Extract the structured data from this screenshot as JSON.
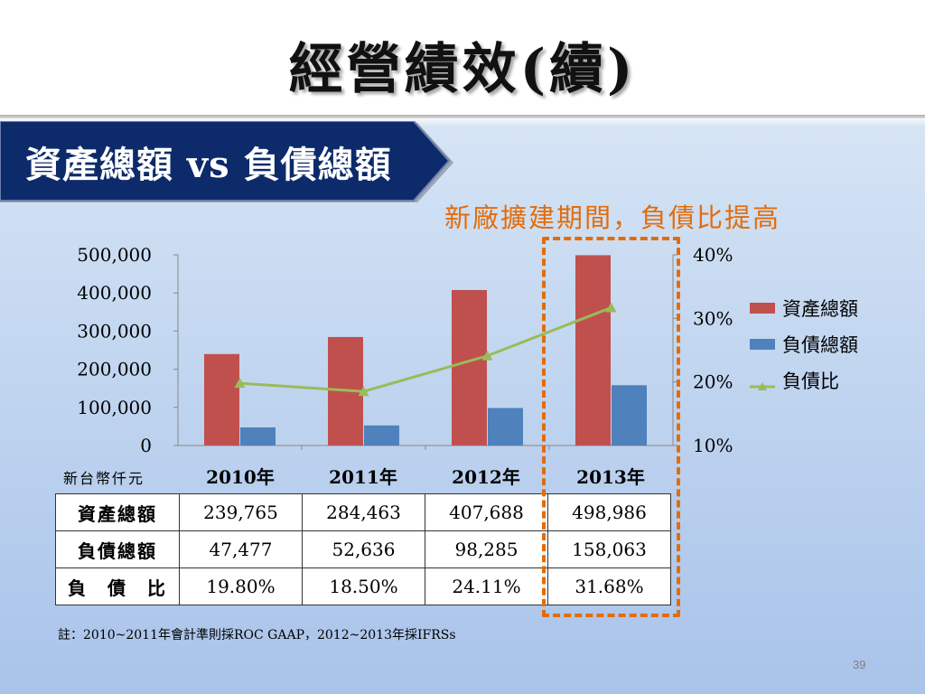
{
  "title": "經營績效(續)",
  "banner": "資產總額 vs 負債總額",
  "highlight_note": "新廠擴建期間，負債比提高",
  "unit_label": "新台幣仟元",
  "page_number": "39",
  "footnote": "註：2010~2011年會計準則採ROC GAAP，2012~2013年採IFRSs",
  "colors": {
    "assets": "#c0504d",
    "liabilities": "#4f81bd",
    "ratio": "#9bbb59",
    "highlight": "#e36c0a",
    "banner": "#0d2a6b"
  },
  "chart_data": {
    "type": "bar",
    "categories": [
      "2010年",
      "2011年",
      "2012年",
      "2013年"
    ],
    "series": [
      {
        "name": "資產總額",
        "type": "bar",
        "axis": "left",
        "values": [
          239765,
          284463,
          407688,
          498986
        ]
      },
      {
        "name": "負債總額",
        "type": "bar",
        "axis": "left",
        "values": [
          47477,
          52636,
          98285,
          158063
        ]
      },
      {
        "name": "負債比",
        "type": "line",
        "axis": "right",
        "values": [
          19.8,
          18.5,
          24.11,
          31.68
        ]
      }
    ],
    "y_left": {
      "ylim": [
        0,
        500000
      ],
      "ticks": [
        "0",
        "100,000",
        "200,000",
        "300,000",
        "400,000",
        "500,000"
      ],
      "tick_values": [
        0,
        100000,
        200000,
        300000,
        400000,
        500000
      ]
    },
    "y_right": {
      "ylim": [
        10,
        40
      ],
      "ticks": [
        "10%",
        "20%",
        "30%",
        "40%"
      ],
      "tick_values": [
        10,
        20,
        30,
        40
      ]
    },
    "legend_position": "right"
  },
  "table": {
    "rows": [
      {
        "label": "資產總額",
        "values": [
          "239,765",
          "284,463",
          "407,688",
          "498,986"
        ]
      },
      {
        "label": "負債總額",
        "values": [
          "47,477",
          "52,636",
          "98,285",
          "158,063"
        ]
      },
      {
        "label": "負　債　比",
        "values": [
          "19.80%",
          "18.50%",
          "24.11%",
          "31.68%"
        ]
      }
    ]
  }
}
